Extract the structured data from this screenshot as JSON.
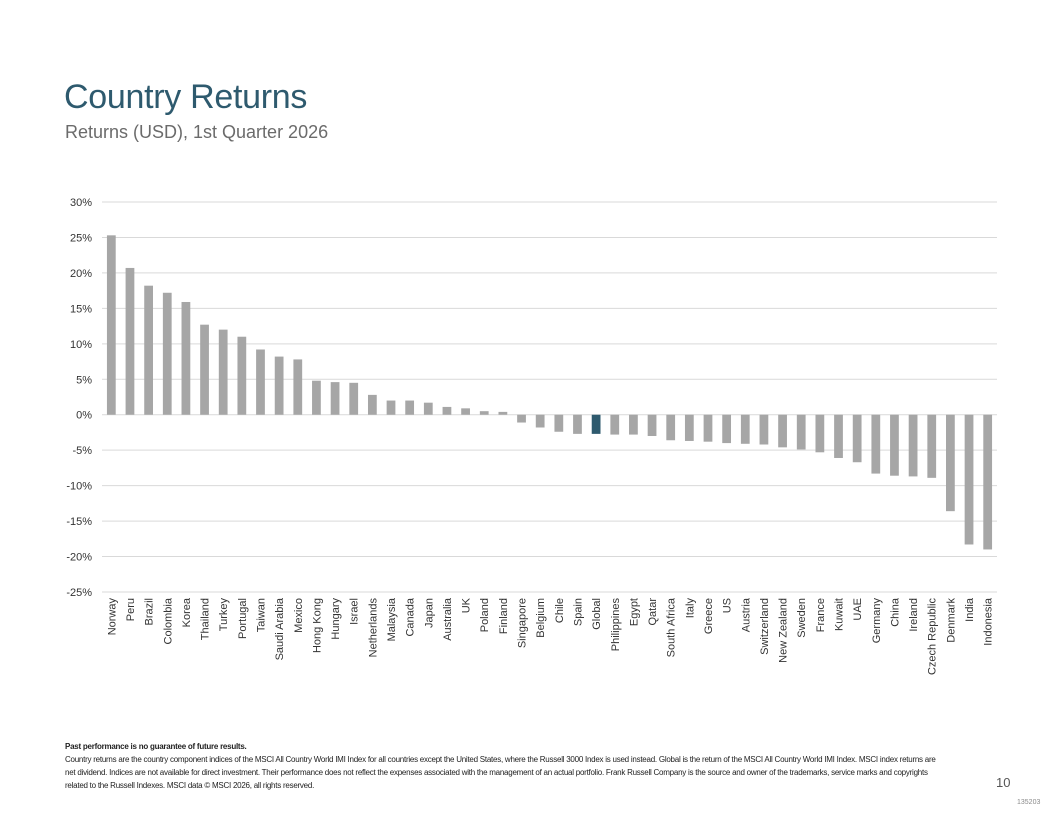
{
  "header": {
    "title": "Country Returns",
    "subtitle": "Returns (USD), 1st Quarter 2026"
  },
  "chart_data": {
    "type": "bar",
    "title": "Country Returns",
    "subtitle": "Returns (USD), 1st Quarter 2026",
    "xlabel": "",
    "ylabel": "",
    "ylim": [
      -25,
      30
    ],
    "yticks": [
      30,
      25,
      20,
      15,
      10,
      5,
      0,
      -5,
      -10,
      -15,
      -20,
      -25
    ],
    "ytick_labels": [
      "30%",
      "25%",
      "20%",
      "15%",
      "10%",
      "5%",
      "0%",
      "-5%",
      "-10%",
      "-15%",
      "-20%",
      "-25%"
    ],
    "grid": true,
    "highlight": "Global",
    "bar_color": "#a6a6a6",
    "highlight_color": "#2e5a6e",
    "categories": [
      "Norway",
      "Peru",
      "Brazil",
      "Colombia",
      "Korea",
      "Thailand",
      "Turkey",
      "Portugal",
      "Taiwan",
      "Saudi Arabia",
      "Mexico",
      "Hong Kong",
      "Hungary",
      "Israel",
      "Netherlands",
      "Malaysia",
      "Canada",
      "Japan",
      "Australia",
      "UK",
      "Poland",
      "Finland",
      "Singapore",
      "Belgium",
      "Chile",
      "Spain",
      "Global",
      "Philippines",
      "Egypt",
      "Qatar",
      "South Africa",
      "Italy",
      "Greece",
      "US",
      "Austria",
      "Switzerland",
      "New Zealand",
      "Sweden",
      "France",
      "Kuwait",
      "UAE",
      "Germany",
      "China",
      "Ireland",
      "Czech Republic",
      "Denmark",
      "India",
      "Indonesia"
    ],
    "values": [
      25.3,
      20.7,
      18.2,
      17.2,
      15.9,
      12.7,
      12.0,
      11.0,
      9.2,
      8.2,
      7.8,
      4.8,
      4.6,
      4.5,
      2.8,
      2.0,
      2.0,
      1.7,
      1.1,
      0.9,
      0.5,
      0.4,
      -1.1,
      -1.8,
      -2.4,
      -2.7,
      -2.7,
      -2.8,
      -2.8,
      -3.0,
      -3.6,
      -3.7,
      -3.8,
      -4.0,
      -4.1,
      -4.2,
      -4.6,
      -4.9,
      -5.3,
      -6.1,
      -6.7,
      -8.3,
      -8.6,
      -8.7,
      -8.9,
      -13.6,
      -18.3,
      -19.0
    ]
  },
  "footer": {
    "disclaimer": "Past performance is no guarantee of future results.",
    "notes": "Country returns are the country component indices of the MSCI All Country World IMI Index for all countries except the United States, where the Russell 3000 Index is used instead. Global is the return of the MSCI All Country World IMI Index. MSCI index returns are net dividend. Indices are not available for direct investment. Their performance does not reflect the expenses associated with the management of an actual portfolio. Frank Russell Company is the source and owner of the trademarks, service marks and copyrights related to the Russell Indexes. MSCI data © MSCI 2026, all rights reserved.",
    "page_number": "10",
    "doc_code": "135203"
  }
}
